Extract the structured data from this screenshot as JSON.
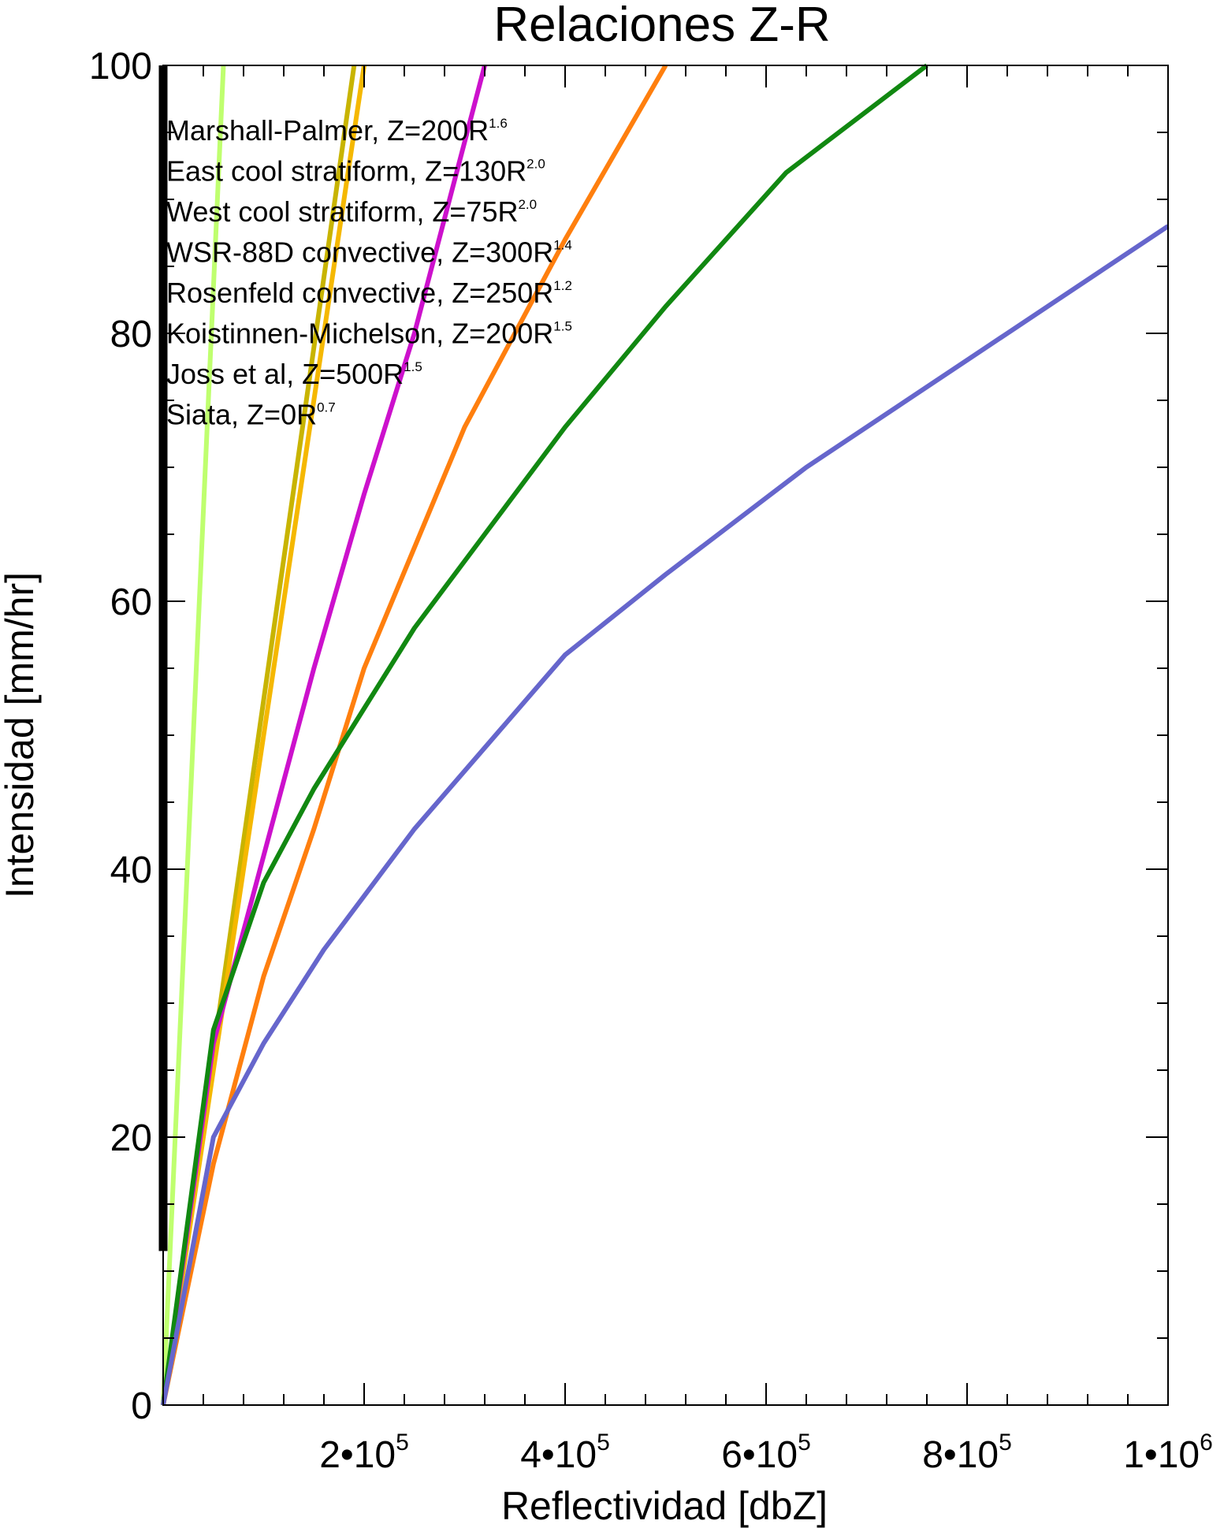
{
  "chart_data": {
    "type": "line",
    "title": "Relaciones Z-R",
    "xlabel": "Reflectividad [dbZ]",
    "ylabel": "Intensidad [mm/hr]",
    "xlim": [
      0,
      1000000
    ],
    "ylim": [
      0,
      100
    ],
    "x_ticks": [
      {
        "value": 200000,
        "base": "2•10",
        "exp": "5"
      },
      {
        "value": 400000,
        "base": "4•10",
        "exp": "5"
      },
      {
        "value": 600000,
        "base": "6•10",
        "exp": "5"
      },
      {
        "value": 800000,
        "base": "8•10",
        "exp": "5"
      },
      {
        "value": 1000000,
        "base": "1•10",
        "exp": "6"
      }
    ],
    "y_ticks": [
      0,
      20,
      40,
      60,
      80,
      100
    ],
    "grid": false,
    "legend_position": "top-left",
    "legend_entries": [
      {
        "text": "Marshall-Palmer, Z=200R",
        "sup": "1.6"
      },
      {
        "text": "East cool stratiform, Z=130R",
        "sup": "2.0"
      },
      {
        "text": "West cool stratiform, Z=75R",
        "sup": "2.0"
      },
      {
        "text": "WSR-88D convective, Z=300R",
        "sup": "1.4"
      },
      {
        "text": "Rosenfeld convective, Z=250R",
        "sup": "1.2"
      },
      {
        "text": "Koistinnen-Michelson, Z=200R",
        "sup": "1.5"
      },
      {
        "text": "Joss et al, Z=500R",
        "sup": "1.5"
      },
      {
        "text": "Siata, Z=0R",
        "sup": "0.7"
      }
    ],
    "series": [
      {
        "color": "#bfff6f",
        "x": [
          0,
          60000
        ],
        "y": [
          0,
          100
        ]
      },
      {
        "color": "#c8b400",
        "x": [
          0,
          190000
        ],
        "y": [
          0,
          100
        ]
      },
      {
        "color": "#f5b800",
        "x": [
          0,
          200000
        ],
        "y": [
          0,
          100
        ]
      },
      {
        "color": "#cc11cc",
        "x": [
          0,
          50000,
          100000,
          150000,
          200000,
          250000,
          320000
        ],
        "y": [
          0,
          27,
          41,
          55,
          68,
          80,
          100
        ]
      },
      {
        "color": "#ff7f0e",
        "x": [
          0,
          50000,
          100000,
          150000,
          200000,
          300000,
          400000,
          500000
        ],
        "y": [
          0,
          18,
          32,
          43,
          55,
          73,
          87,
          100
        ]
      },
      {
        "color": "#118811",
        "x": [
          0,
          50000,
          100000,
          150000,
          200000,
          250000,
          320000,
          400000,
          500000,
          620000,
          760000
        ],
        "y": [
          0,
          28,
          39,
          46,
          52,
          58,
          65,
          73,
          82,
          92,
          100
        ]
      },
      {
        "color": "#6666cc",
        "x": [
          0,
          50000,
          100000,
          160000,
          250000,
          400000,
          500000,
          640000,
          800000,
          1000000
        ],
        "y": [
          0,
          20,
          27,
          34,
          43,
          56,
          62,
          70,
          78,
          88
        ]
      },
      {
        "color": "#000000",
        "x": [
          0,
          0
        ],
        "y": [
          11.5,
          100
        ]
      }
    ]
  }
}
